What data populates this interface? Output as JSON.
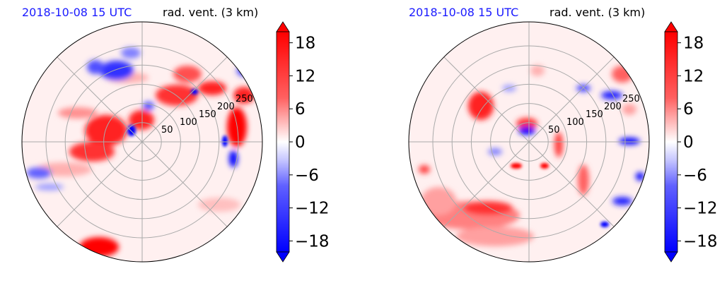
{
  "panels": [
    {
      "date_label": "2018-10-08 15 UTC",
      "var_label": "rad. vent. (3 km)",
      "ring_labels": [
        "50",
        "100",
        "150",
        "200",
        "250"
      ]
    },
    {
      "date_label": "2018-10-08 15 UTC",
      "var_label": "rad. vent. (3 km)",
      "ring_labels": [
        "50",
        "100",
        "150",
        "200",
        "250"
      ]
    }
  ],
  "chart_data": [
    {
      "type": "heatmap",
      "projection": "polar",
      "title": "rad. vent. (3 km)",
      "subtitle": "2018-10-08 15 UTC",
      "radial_ticks": [
        50,
        100,
        150,
        200,
        250
      ],
      "angular_gridlines_deg": [
        0,
        45,
        90,
        135,
        180,
        225,
        270,
        315
      ],
      "grid": true,
      "colorbar": {
        "ticks": [
          18,
          12,
          6,
          0,
          -6,
          -12,
          -18
        ],
        "tick_labels": [
          "18",
          "12",
          "6",
          "0",
          "−6",
          "−12",
          "−18"
        ],
        "range": [
          -20,
          20
        ],
        "extend": "both",
        "cmap": "bwr",
        "position": "right"
      }
    },
    {
      "type": "heatmap",
      "projection": "polar",
      "title": "rad. vent. (3 km)",
      "subtitle": "2018-10-08 15 UTC",
      "radial_ticks": [
        50,
        100,
        150,
        200,
        250
      ],
      "angular_gridlines_deg": [
        0,
        45,
        90,
        135,
        180,
        225,
        270,
        315
      ],
      "grid": true,
      "colorbar": {
        "ticks": [
          18,
          12,
          6,
          0,
          -6,
          -12,
          -18
        ],
        "tick_labels": [
          "18",
          "12",
          "6",
          "0",
          "−6",
          "−12",
          "−18"
        ],
        "range": [
          -20,
          20
        ],
        "extend": "both",
        "cmap": "bwr",
        "position": "right"
      }
    }
  ],
  "colors": {
    "date_text": "#1a1aff",
    "grid": "#aaaaaa",
    "background_field": "#fff0f0",
    "red_strong": "#ff0000",
    "blue_strong": "#0000ff"
  }
}
